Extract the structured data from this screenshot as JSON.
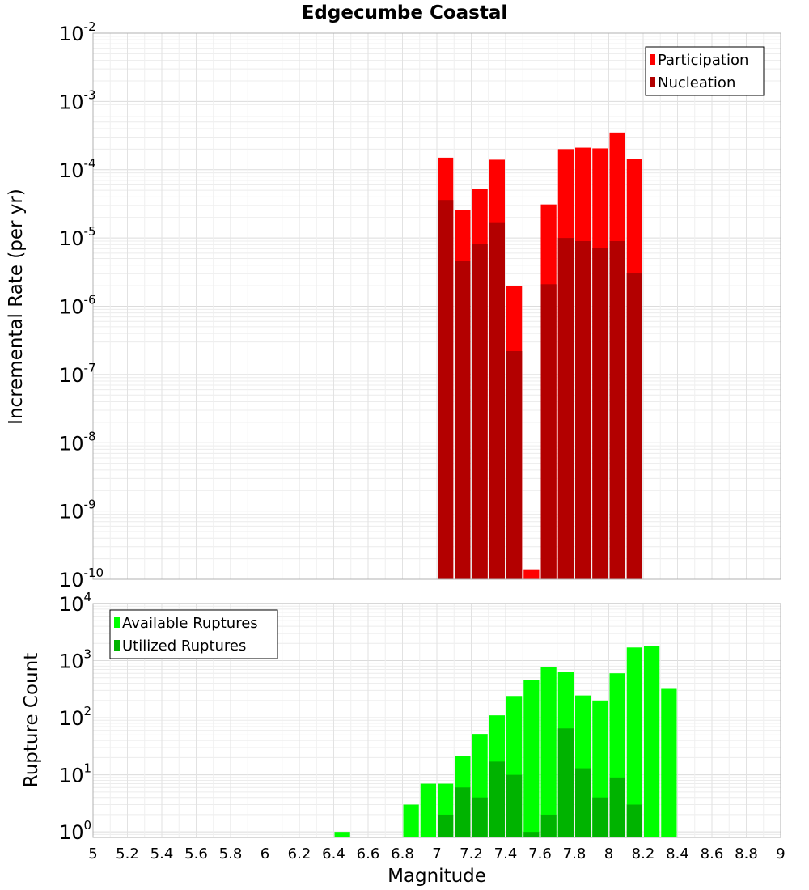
{
  "chart_data": [
    {
      "type": "bar",
      "title": "Edgecumbe Coastal",
      "xlabel": "",
      "ylabel": "Incremental Rate (per yr)",
      "yscale": "log",
      "ylim": [
        1e-10,
        0.01
      ],
      "xlim": [
        5,
        9
      ],
      "bin_width": 0.1,
      "grid": true,
      "legend_placement": "top-right",
      "ytick_exponents": [
        "-2",
        "-3",
        "-4",
        "-5",
        "-6",
        "-7",
        "-8",
        "-9",
        "-10"
      ],
      "series": [
        {
          "name": "Participation",
          "color": "#ff0000",
          "x": [
            7.05,
            7.15,
            7.25,
            7.35,
            7.45,
            7.55,
            7.65,
            7.75,
            7.85,
            7.95,
            8.05,
            8.15
          ],
          "values": [
            0.00015,
            2.6e-05,
            5.3e-05,
            0.00014,
            2e-06,
            1.4e-10,
            3.1e-05,
            0.0002,
            0.00021,
            0.000205,
            0.00035,
            0.000145
          ]
        },
        {
          "name": "Nucleation",
          "color": "#b30000",
          "x": [
            7.05,
            7.15,
            7.25,
            7.35,
            7.45,
            7.55,
            7.65,
            7.75,
            7.85,
            7.95,
            8.05,
            8.15
          ],
          "values": [
            3.6e-05,
            4.6e-06,
            8.2e-06,
            1.7e-05,
            2.2e-07,
            0,
            2.1e-06,
            1e-05,
            9e-06,
            7.2e-06,
            9e-06,
            3.1e-06
          ]
        }
      ]
    },
    {
      "type": "bar",
      "title": "",
      "xlabel": "Magnitude",
      "ylabel": "Rupture Count",
      "yscale": "log",
      "ylim": [
        0.8,
        10000
      ],
      "xlim": [
        5,
        9
      ],
      "bin_width": 0.1,
      "grid": true,
      "legend_placement": "top-left",
      "xticks": [
        "5",
        "5.2",
        "5.4",
        "5.6",
        "5.8",
        "6",
        "6.2",
        "6.4",
        "6.6",
        "6.8",
        "7",
        "7.2",
        "7.4",
        "7.6",
        "7.8",
        "8",
        "8.2",
        "8.4",
        "8.6",
        "8.8",
        "9"
      ],
      "ytick_exponents": [
        "4",
        "3",
        "2",
        "1",
        "0"
      ],
      "series": [
        {
          "name": "Available Ruptures",
          "color": "#00ff00",
          "x": [
            6.45,
            6.85,
            6.95,
            7.05,
            7.15,
            7.25,
            7.35,
            7.45,
            7.55,
            7.65,
            7.75,
            7.85,
            7.95,
            8.05,
            8.15,
            8.25,
            8.35
          ],
          "values": [
            1,
            3,
            7,
            7,
            21,
            52,
            110,
            240,
            460,
            760,
            640,
            245,
            200,
            600,
            1700,
            1800,
            330
          ]
        },
        {
          "name": "Utilized Ruptures",
          "color": "#00b300",
          "x": [
            7.05,
            7.15,
            7.25,
            7.35,
            7.45,
            7.55,
            7.65,
            7.75,
            7.85,
            7.95,
            8.05,
            8.15
          ],
          "values": [
            2,
            6,
            4,
            17,
            10,
            1,
            2,
            65,
            13,
            4,
            9,
            3
          ]
        }
      ]
    }
  ]
}
